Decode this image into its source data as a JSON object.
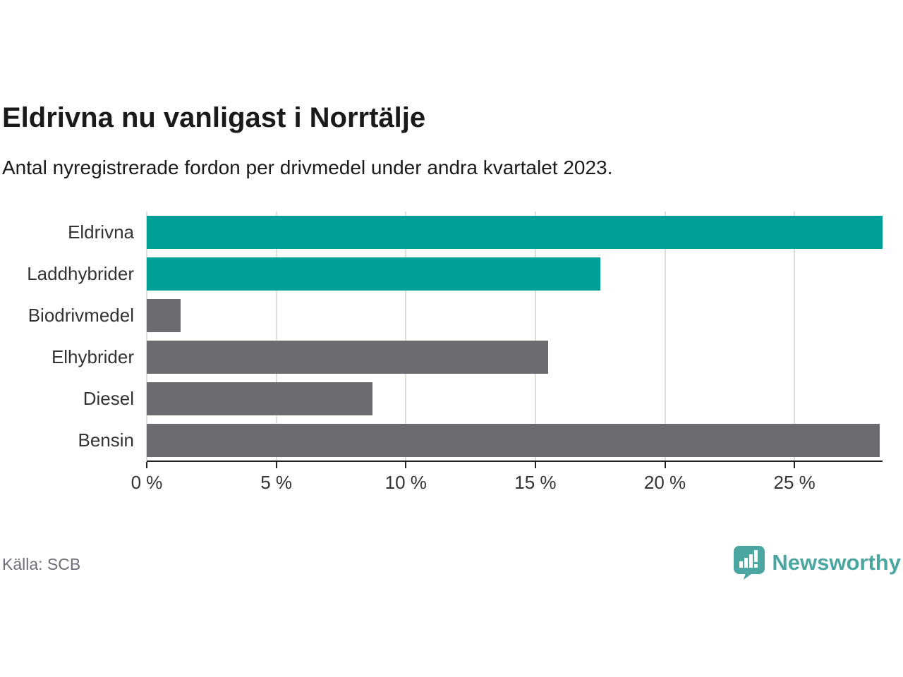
{
  "chart_data": {
    "type": "bar",
    "orientation": "horizontal",
    "title": "Eldrivna nu vanligast i Norrtälje",
    "subtitle": "Antal nyregistrerade fordon per drivmedel under andra kvartalet 2023.",
    "categories": [
      "Eldrivna",
      "Laddhybrider",
      "Biodrivmedel",
      "Elhybrider",
      "Diesel",
      "Bensin"
    ],
    "values": [
      28.4,
      17.5,
      1.3,
      15.5,
      8.7,
      28.3
    ],
    "unit": "%",
    "bar_colors": [
      "#00A099",
      "#00A099",
      "#6B6B70",
      "#6B6B70",
      "#6B6B70",
      "#6B6B70"
    ],
    "xlabel": "",
    "ylabel": "",
    "xlim": [
      0,
      28.4
    ],
    "xticks": {
      "values": [
        0,
        5,
        10,
        15,
        20,
        25
      ],
      "labels": [
        "0 %",
        "5 %",
        "10 %",
        "15 %",
        "20 %",
        "25 %"
      ]
    },
    "grid": "vertical-gridlines-behind-bars",
    "legend": "none"
  },
  "colors": {
    "highlight": "#00A099",
    "default_bar": "#6B6B70",
    "gridline": "#DEDEDE",
    "axis": "#222222",
    "text": "#1A1A1A",
    "muted_text": "#6E6E78",
    "brand": "#4BA6A1"
  },
  "footer": {
    "source": "Källa: SCB",
    "brand": "Newsworthy"
  }
}
